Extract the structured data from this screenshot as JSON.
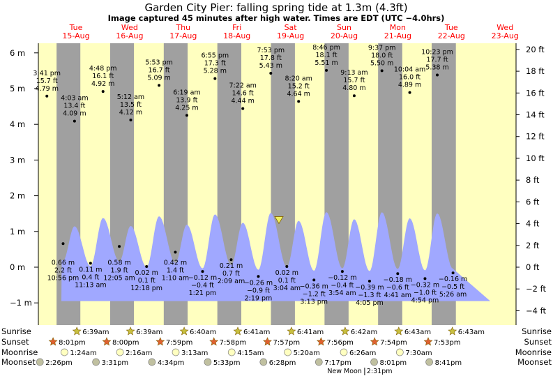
{
  "title": "Garden City Pier: falling  spring tide at 1.3m (4.3ft)",
  "subtitle": "Image captured 45 minutes after high water. Times are EDT (UTC −4.0hrs)",
  "colors": {
    "day_bg": "#ffffc0",
    "night_bg": "#a0a0a0",
    "water": "#a0a8ff",
    "date_text": "#ff0000",
    "sun_marker": "#c8c040",
    "sunset_marker": "#e06030",
    "moon_marker": "#ffffc0",
    "moonset_marker": "#c0c0a0"
  },
  "chart_data": {
    "type": "area",
    "x_unit": "EDT date-time",
    "y_unit": "m",
    "ylim": [
      -1.0,
      6.0
    ],
    "y_left_ticks": [
      "6 m",
      "5 m",
      "4 m",
      "3 m",
      "2 m",
      "1 m",
      "0 m",
      "−1 m"
    ],
    "y_right_ticks": [
      "20 ft",
      "18 ft",
      "16 ft",
      "14 ft",
      "12 ft",
      "10 ft",
      "8 ft",
      "6 ft",
      "4 ft",
      "2 ft",
      "0 ft",
      "−2 ft",
      "−4 ft"
    ],
    "days": [
      {
        "dow": "Tue",
        "date": "15-Aug"
      },
      {
        "dow": "Wed",
        "date": "16-Aug"
      },
      {
        "dow": "Thu",
        "date": "17-Aug"
      },
      {
        "dow": "Fri",
        "date": "18-Aug"
      },
      {
        "dow": "Sat",
        "date": "19-Aug"
      },
      {
        "dow": "Sun",
        "date": "20-Aug"
      },
      {
        "dow": "Mon",
        "date": "21-Aug"
      },
      {
        "dow": "Tue",
        "date": "22-Aug"
      },
      {
        "dow": "Wed",
        "date": "23-Aug"
      }
    ],
    "high_tides": [
      {
        "time": "3:41 pm",
        "ft": "15.7 ft",
        "m": "4.79 m"
      },
      {
        "time": "4:03 am",
        "ft": "13.4 ft",
        "m": "4.09 m"
      },
      {
        "time": "4:48 pm",
        "ft": "16.1 ft",
        "m": "4.92 m"
      },
      {
        "time": "5:12 am",
        "ft": "13.5 ft",
        "m": "4.12 m"
      },
      {
        "time": "5:53 pm",
        "ft": "16.7 ft",
        "m": "5.09 m"
      },
      {
        "time": "6:19 am",
        "ft": "13.9 ft",
        "m": "4.25 m"
      },
      {
        "time": "6:55 pm",
        "ft": "17.3 ft",
        "m": "5.28 m"
      },
      {
        "time": "7:22 am",
        "ft": "14.6 ft",
        "m": "4.44 m"
      },
      {
        "time": "7:53 pm",
        "ft": "17.8 ft",
        "m": "5.43 m"
      },
      {
        "time": "8:20 am",
        "ft": "15.2 ft",
        "m": "4.64 m"
      },
      {
        "time": "8:46 pm",
        "ft": "18.1 ft",
        "m": "5.51 m"
      },
      {
        "time": "9:13 am",
        "ft": "15.7 ft",
        "m": "4.80 m"
      },
      {
        "time": "9:37 pm",
        "ft": "18.0 ft",
        "m": "5.50 m"
      },
      {
        "time": "10:04 am",
        "ft": "16.0 ft",
        "m": "4.89 m"
      },
      {
        "time": "10:23 pm",
        "ft": "17.7 ft",
        "m": "5.38 m"
      }
    ],
    "low_tides": [
      {
        "time": "10:56 pm",
        "ft": "2.2 ft",
        "m": "0.66 m"
      },
      {
        "time": "11:13 am",
        "ft": "0.4 ft",
        "m": "0.11 m"
      },
      {
        "time": "12:05 am",
        "ft": "1.9 ft",
        "m": "0.58 m"
      },
      {
        "time": "12:18 pm",
        "ft": "0.1 ft",
        "m": "0.02 m"
      },
      {
        "time": "1:10 am",
        "ft": "1.4 ft",
        "m": "0.42 m"
      },
      {
        "time": "1:21 pm",
        "ft": "−0.4 ft",
        "m": "−0.12 m"
      },
      {
        "time": "2:09 am",
        "ft": "0.7 ft",
        "m": "0.21 m"
      },
      {
        "time": "2:19 pm",
        "ft": "−0.9 ft",
        "m": "−0.26 m"
      },
      {
        "time": "3:04 am",
        "ft": "0.1 ft",
        "m": "0.02 m"
      },
      {
        "time": "3:13 pm",
        "ft": "−1.2 ft",
        "m": "−0.36 m"
      },
      {
        "time": "3:54 am",
        "ft": "−0.4 ft",
        "m": "−0.12 m"
      },
      {
        "time": "4:05 pm",
        "ft": "−1.3 ft",
        "m": "−0.39 m"
      },
      {
        "time": "4:41 am",
        "ft": "−0.6 ft",
        "m": "−0.18 m"
      },
      {
        "time": "4:54 pm",
        "ft": "−1.0 ft",
        "m": "−0.32 m"
      },
      {
        "time": "5:26 am",
        "ft": "−0.5 ft",
        "m": "−0.16 m"
      }
    ],
    "current_level": "1.3 m",
    "grid": false
  },
  "events": {
    "row_labels": [
      "Sunrise",
      "Sunset",
      "Moonrise",
      "Moonset"
    ],
    "sunrise": [
      "6:39am",
      "6:39am",
      "6:40am",
      "6:41am",
      "6:41am",
      "6:42am",
      "6:43am",
      "6:43am"
    ],
    "sunset": [
      "8:01pm",
      "8:00pm",
      "7:59pm",
      "7:58pm",
      "7:57pm",
      "7:56pm",
      "7:54pm",
      "7:53pm"
    ],
    "moonrise": [
      "1:24am",
      "2:16am",
      "3:13am",
      "4:15am",
      "5:20am",
      "6:26am",
      "7:30am"
    ],
    "moonset": [
      "2:26pm",
      "3:31pm",
      "4:34pm",
      "5:33pm",
      "6:28pm",
      "7:17pm",
      "8:01pm",
      "8:41pm"
    ],
    "new_moon_label": "New Moon",
    "new_moon_time": "2:31pm"
  }
}
